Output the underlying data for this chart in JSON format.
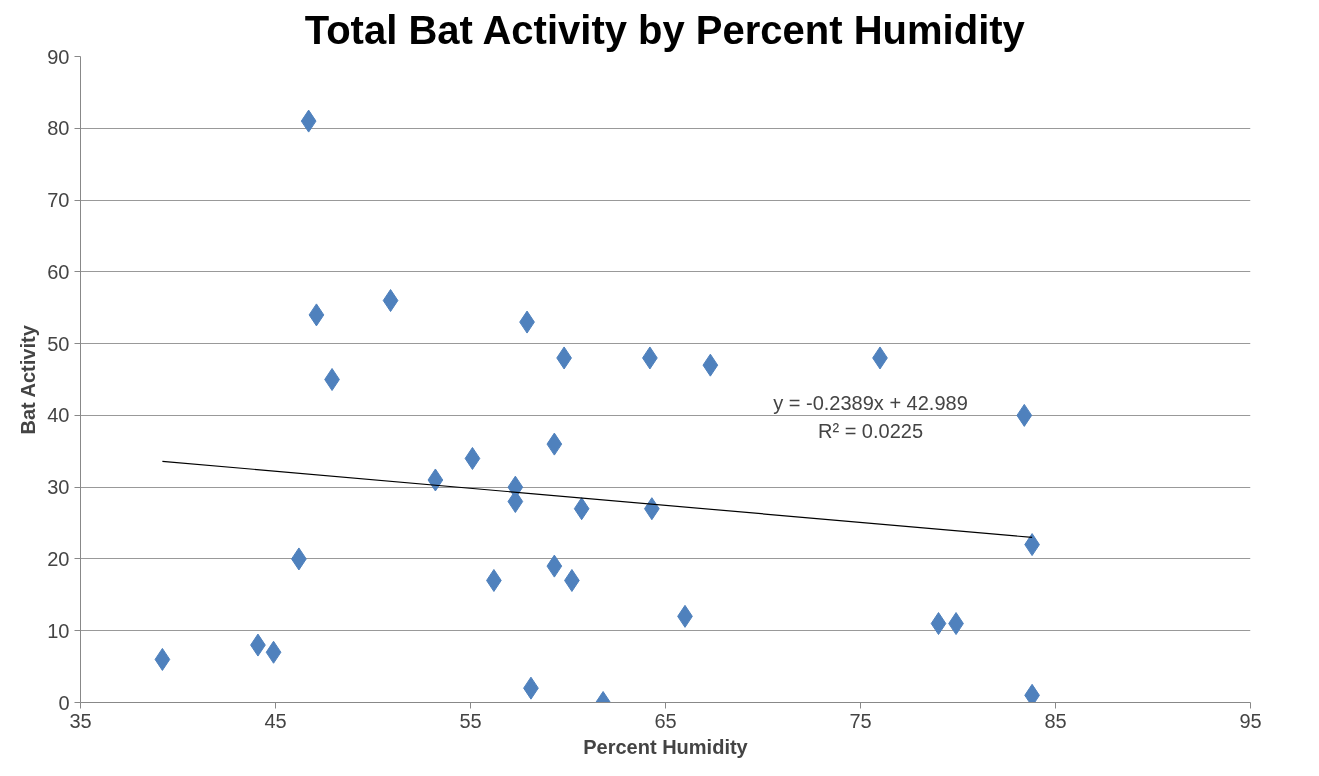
{
  "chart_data": {
    "type": "scatter",
    "title": "Total Bat Activity by Percent Humidity",
    "xlabel": "Percent Humidity",
    "ylabel": "Bat Activity",
    "xlim": [
      35,
      95
    ],
    "xticks": [
      35,
      45,
      55,
      65,
      75,
      85,
      95
    ],
    "ylim": [
      0,
      90
    ],
    "yticks": [
      0,
      10,
      20,
      30,
      40,
      50,
      60,
      70,
      80,
      90
    ],
    "grid": "y",
    "marker": "diamond",
    "series": [
      {
        "color": "#4f81bd",
        "x": [
          39.2,
          44.1,
          44.9,
          46.2,
          46.7,
          47.1,
          47.9,
          50.9,
          53.2,
          55.1,
          56.2,
          57.3,
          57.3,
          57.9,
          58.1,
          59.3,
          59.3,
          59.8,
          60.2,
          60.7,
          61.8,
          64.2,
          64.3,
          66.0,
          67.3,
          76.0,
          79.0,
          79.9,
          83.4,
          83.8,
          83.8
        ],
        "values": [
          6,
          8,
          7,
          20,
          81,
          54,
          45,
          56,
          31,
          34,
          17,
          30,
          28,
          53,
          2,
          36,
          19,
          48,
          17,
          27,
          0,
          48,
          27,
          12,
          47,
          48,
          11,
          11,
          40,
          22,
          1
        ]
      },
      {
        "type": "line",
        "color": "#000000",
        "marker": "none",
        "x": [
          39.2,
          83.8
        ],
        "values": [
          33.6,
          23.0
        ]
      }
    ],
    "annotations": [
      "y = -0.2389x + 42.989",
      "R² = 0.0225"
    ]
  }
}
